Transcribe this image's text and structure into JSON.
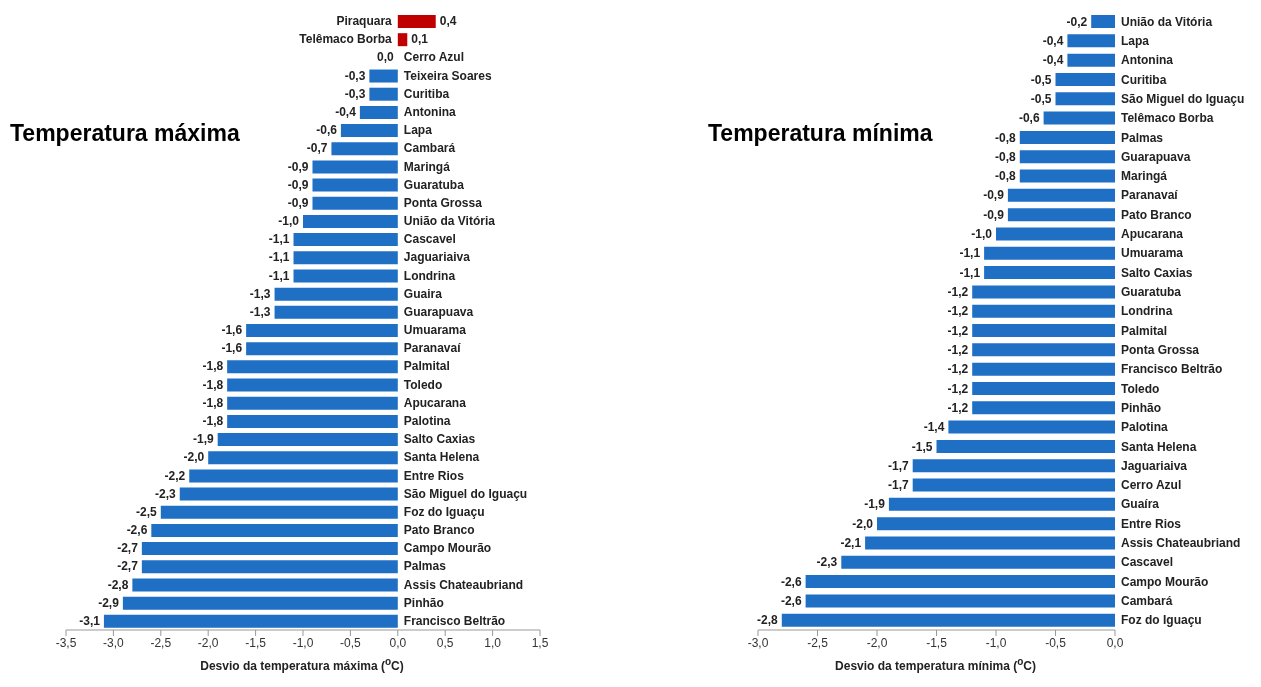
{
  "chart_data": [
    {
      "type": "bar",
      "orientation": "horizontal",
      "title": "Temperatura máxima",
      "xlabel": "Desvio da temperatura máxima ($^{o}$C)",
      "categories": [
        "Piraquara",
        "Telêmaco Borba",
        "Cerro Azul",
        "Teixeira Soares",
        "Curitiba",
        "Antonina",
        "Lapa",
        "Cambará",
        "Maringá",
        "Guaratuba",
        "Ponta Grossa",
        "União da Vitória",
        "Cascavel",
        "Jaguariaiva",
        "Londrina",
        "Guaira",
        "Guarapuava",
        "Umuarama",
        "Paranavaí",
        "Palmital",
        "Toledo",
        "Apucarana",
        "Palotina",
        "Salto Caxias",
        "Santa Helena",
        "Entre Rios",
        "São Miguel do Iguaçu",
        "Foz do Iguaçu",
        "Pato Branco",
        "Campo Mourão",
        "Palmas",
        "Assis Chateaubriand",
        "Pinhão",
        "Francisco Beltrão"
      ],
      "values": [
        0.4,
        0.1,
        0.0,
        -0.3,
        -0.3,
        -0.4,
        -0.6,
        -0.7,
        -0.9,
        -0.9,
        -0.9,
        -1.0,
        -1.1,
        -1.1,
        -1.1,
        -1.3,
        -1.3,
        -1.6,
        -1.6,
        -1.8,
        -1.8,
        -1.8,
        -1.8,
        -1.9,
        -2.0,
        -2.2,
        -2.3,
        -2.5,
        -2.6,
        -2.7,
        -2.7,
        -2.8,
        -2.9,
        -3.1
      ],
      "value_labels": [
        "0,4",
        "0,1",
        "0,0",
        "-0,3",
        "-0,3",
        "-0,4",
        "-0,6",
        "-0,7",
        "-0,9",
        "-0,9",
        "-0,9",
        "-1,0",
        "-1,1",
        "-1,1",
        "-1,1",
        "-1,3",
        "-1,3",
        "-1,6",
        "-1,6",
        "-1,8",
        "-1,8",
        "-1,8",
        "-1,8",
        "-1,9",
        "-2,0",
        "-2,2",
        "-2,3",
        "-2,5",
        "-2,6",
        "-2,7",
        "-2,7",
        "-2,8",
        "-2,9",
        "-3,1"
      ],
      "colors": [
        "#c00000",
        "#c00000",
        "#1f6fc5",
        "#1f6fc5",
        "#1f6fc5",
        "#1f6fc5",
        "#1f6fc5",
        "#1f6fc5",
        "#1f6fc5",
        "#1f6fc5",
        "#1f6fc5",
        "#1f6fc5",
        "#1f6fc5",
        "#1f6fc5",
        "#1f6fc5",
        "#1f6fc5",
        "#1f6fc5",
        "#1f6fc5",
        "#1f6fc5",
        "#1f6fc5",
        "#1f6fc5",
        "#1f6fc5",
        "#1f6fc5",
        "#1f6fc5",
        "#1f6fc5",
        "#1f6fc5",
        "#1f6fc5",
        "#1f6fc5",
        "#1f6fc5",
        "#1f6fc5",
        "#1f6fc5",
        "#1f6fc5",
        "#1f6fc5",
        "#1f6fc5"
      ],
      "xlim": [
        -3.5,
        1.5
      ],
      "xticks": [
        {
          "value": -3.5,
          "label": "-3,5"
        },
        {
          "value": -3,
          "label": "-3,0"
        },
        {
          "value": -2.5,
          "label": "-2,5"
        },
        {
          "value": -2,
          "label": "-2,0"
        },
        {
          "value": -1.5,
          "label": "-1,5"
        },
        {
          "value": -1,
          "label": "-1,0"
        },
        {
          "value": -0.5,
          "label": "-0,5"
        },
        {
          "value": 0,
          "label": "0,0"
        },
        {
          "value": 0.5,
          "label": "0,5"
        },
        {
          "value": 1,
          "label": "1,0"
        },
        {
          "value": 1.5,
          "label": "1,5"
        }
      ],
      "grid": false,
      "legend": false
    },
    {
      "type": "bar",
      "orientation": "horizontal",
      "title": "Temperatura mínima",
      "xlabel": "Desvio da temperatura mínima ($^{o}$C)",
      "categories": [
        "União da Vitória",
        "Lapa",
        "Antonina",
        "Curitiba",
        "São Miguel do Iguaçu",
        "Telêmaco Borba",
        "Palmas",
        "Guarapuava",
        "Maringá",
        "Paranavaí",
        "Pato Branco",
        "Apucarana",
        "Umuarama",
        "Salto Caxias",
        "Guaratuba",
        "Londrina",
        "Palmital",
        "Ponta Grossa",
        "Francisco Beltrão",
        "Toledo",
        "Pinhão",
        "Palotina",
        "Santa Helena",
        "Jaguariaiva",
        "Cerro Azul",
        "Guaíra",
        "Entre Rios",
        "Assis Chateaubriand",
        "Cascavel",
        "Campo Mourão",
        "Cambará",
        "Foz do Iguaçu"
      ],
      "values": [
        -0.2,
        -0.4,
        -0.4,
        -0.5,
        -0.5,
        -0.6,
        -0.8,
        -0.8,
        -0.8,
        -0.9,
        -0.9,
        -1.0,
        -1.1,
        -1.1,
        -1.2,
        -1.2,
        -1.2,
        -1.2,
        -1.2,
        -1.2,
        -1.2,
        -1.4,
        -1.5,
        -1.7,
        -1.7,
        -1.9,
        -2.0,
        -2.1,
        -2.3,
        -2.6,
        -2.6,
        -2.8
      ],
      "value_labels": [
        "-0,2",
        "-0,4",
        "-0,4",
        "-0,5",
        "-0,5",
        "-0,6",
        "-0,8",
        "-0,8",
        "-0,8",
        "-0,9",
        "-0,9",
        "-1,0",
        "-1,1",
        "-1,1",
        "-1,2",
        "-1,2",
        "-1,2",
        "-1,2",
        "-1,2",
        "-1,2",
        "-1,2",
        "-1,4",
        "-1,5",
        "-1,7",
        "-1,7",
        "-1,9",
        "-2,0",
        "-2,1",
        "-2,3",
        "-2,6",
        "-2,6",
        "-2,8"
      ],
      "colors": [
        "#1f6fc5",
        "#1f6fc5",
        "#1f6fc5",
        "#1f6fc5",
        "#1f6fc5",
        "#1f6fc5",
        "#1f6fc5",
        "#1f6fc5",
        "#1f6fc5",
        "#1f6fc5",
        "#1f6fc5",
        "#1f6fc5",
        "#1f6fc5",
        "#1f6fc5",
        "#1f6fc5",
        "#1f6fc5",
        "#1f6fc5",
        "#1f6fc5",
        "#1f6fc5",
        "#1f6fc5",
        "#1f6fc5",
        "#1f6fc5",
        "#1f6fc5",
        "#1f6fc5",
        "#1f6fc5",
        "#1f6fc5",
        "#1f6fc5",
        "#1f6fc5",
        "#1f6fc5",
        "#1f6fc5",
        "#1f6fc5",
        "#1f6fc5"
      ],
      "xlim": [
        -3.0,
        0.0
      ],
      "xticks": [
        {
          "value": -3,
          "label": "-3,0"
        },
        {
          "value": -2.5,
          "label": "-2,5"
        },
        {
          "value": -2,
          "label": "-2,0"
        },
        {
          "value": -1.5,
          "label": "-1,5"
        },
        {
          "value": -1,
          "label": "-1,0"
        },
        {
          "value": -0.5,
          "label": "-0,5"
        },
        {
          "value": 0,
          "label": "0,0"
        }
      ],
      "grid": false,
      "legend": false
    }
  ]
}
